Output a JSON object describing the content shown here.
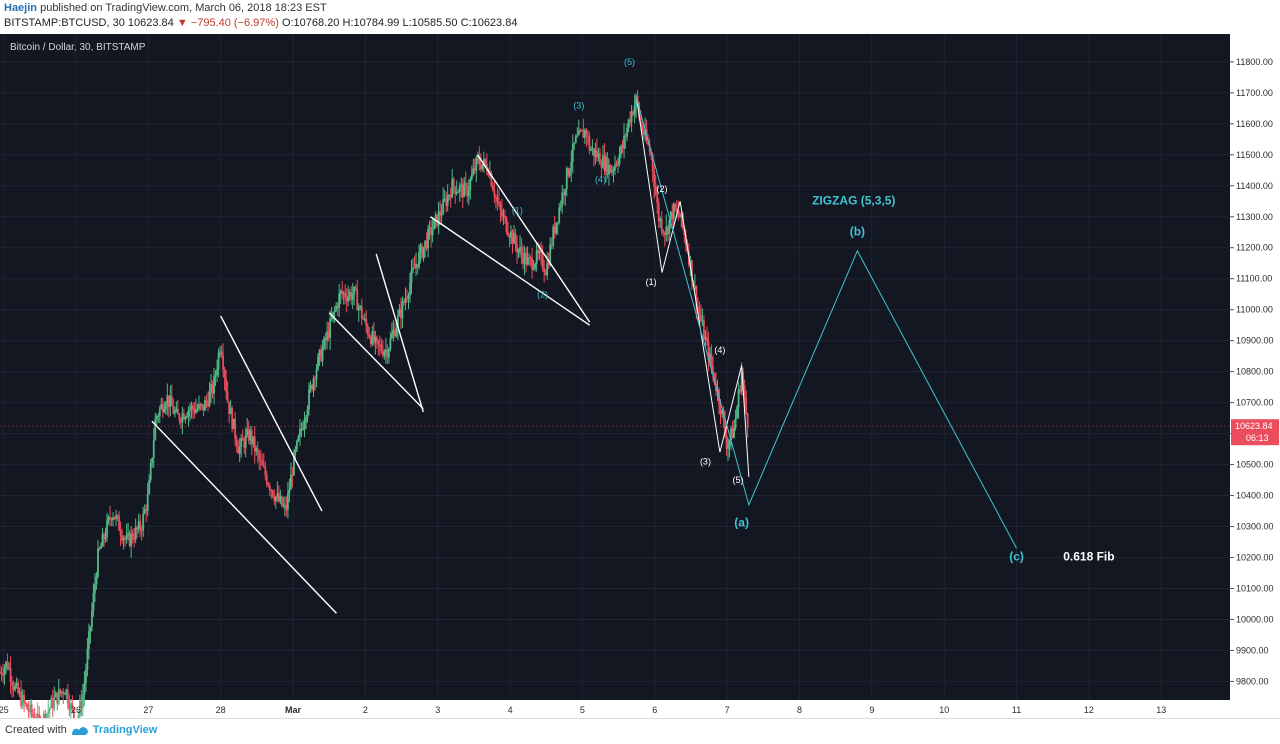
{
  "header": {
    "author": "Haejin",
    "published_text": "published on TradingView.com, March 06, 2018 18:23 EST",
    "symbol": "BITSTAMP:BTCUSD, 30",
    "last": "10623.84",
    "change": "−795.40 (−6.97%)",
    "open": "O:10768.20",
    "high": "H:10784.99",
    "low": "L:10585.50",
    "close": "C:10623.84",
    "chart_title": "Bitcoin / Dollar, 30, BITSTAMP"
  },
  "footer": {
    "created_with": "Created with",
    "brand": "TradingView"
  },
  "colors": {
    "background": "#131722",
    "up": "#53b987",
    "down": "#eb4d5c",
    "cyan": "#40c4d2",
    "white": "#ffffff",
    "price_badge": "#eb4d5c"
  },
  "chart_data": {
    "type": "candlestick",
    "title": "Bitcoin / Dollar, 30, BITSTAMP",
    "x_ticks": [
      "25",
      "26",
      "27",
      "28",
      "Mar",
      "2",
      "3",
      "4",
      "5",
      "6",
      "7",
      "8",
      "9",
      "10",
      "11",
      "12",
      "13"
    ],
    "x_tick_days": [
      0,
      1,
      2,
      3,
      4,
      5,
      6,
      7,
      8,
      9,
      10,
      11,
      12,
      13,
      14,
      15,
      16
    ],
    "y_ticks": [
      9800,
      9900,
      10000,
      10100,
      10200,
      10300,
      10400,
      10500,
      10600,
      10700,
      10800,
      10900,
      11000,
      11100,
      11200,
      11300,
      11400,
      11500,
      11600,
      11700,
      11800
    ],
    "y_tick_labels": [
      "9800.00",
      "9900.00",
      "10000.00",
      "10100.00",
      "10200.00",
      "10300.00",
      "10400.00",
      "10500.00",
      "10600.00",
      "10700.00",
      "10800.00",
      "10900.00",
      "11000.00",
      "11100.00",
      "11200.00",
      "11300.00",
      "11400.00",
      "11500.00",
      "11600.00",
      "11700.00",
      "11800.00"
    ],
    "ylim": [
      9740,
      11890
    ],
    "xlim_days": [
      -0.05,
      16.95
    ],
    "last_price": {
      "value": 10623.84,
      "label": "10623.84",
      "countdown": "06:13"
    },
    "price_path": [
      [
        -0.05,
        9830
      ],
      [
        0.05,
        9860
      ],
      [
        0.15,
        9780
      ],
      [
        0.3,
        9720
      ],
      [
        0.5,
        9660
      ],
      [
        0.7,
        9740
      ],
      [
        0.85,
        9780
      ],
      [
        1.0,
        9660
      ],
      [
        1.1,
        9760
      ],
      [
        1.3,
        10200
      ],
      [
        1.5,
        10350
      ],
      [
        1.7,
        10250
      ],
      [
        1.9,
        10300
      ],
      [
        2.0,
        10400
      ],
      [
        2.1,
        10650
      ],
      [
        2.25,
        10720
      ],
      [
        2.4,
        10650
      ],
      [
        2.55,
        10680
      ],
      [
        2.75,
        10680
      ],
      [
        2.9,
        10750
      ],
      [
        3.0,
        10900
      ],
      [
        3.1,
        10700
      ],
      [
        3.25,
        10550
      ],
      [
        3.4,
        10600
      ],
      [
        3.55,
        10500
      ],
      [
        3.75,
        10400
      ],
      [
        3.9,
        10350
      ],
      [
        4.0,
        10500
      ],
      [
        4.15,
        10650
      ],
      [
        4.3,
        10800
      ],
      [
        4.45,
        10900
      ],
      [
        4.65,
        11050
      ],
      [
        4.85,
        11050
      ],
      [
        5.0,
        10950
      ],
      [
        5.15,
        10880
      ],
      [
        5.3,
        10870
      ],
      [
        5.5,
        11000
      ],
      [
        5.7,
        11150
      ],
      [
        5.9,
        11250
      ],
      [
        6.05,
        11320
      ],
      [
        6.2,
        11400
      ],
      [
        6.4,
        11380
      ],
      [
        6.55,
        11480
      ],
      [
        6.7,
        11460
      ],
      [
        6.85,
        11320
      ],
      [
        7.0,
        11250
      ],
      [
        7.1,
        11200
      ],
      [
        7.25,
        11150
      ],
      [
        7.4,
        11170
      ],
      [
        7.5,
        11130
      ],
      [
        7.6,
        11250
      ],
      [
        7.75,
        11400
      ],
      [
        7.9,
        11540
      ],
      [
        8.05,
        11580
      ],
      [
        8.1,
        11520
      ],
      [
        8.2,
        11500
      ],
      [
        8.4,
        11450
      ],
      [
        8.55,
        11520
      ],
      [
        8.65,
        11620
      ],
      [
        8.75,
        11680
      ],
      [
        8.8,
        11600
      ],
      [
        8.95,
        11500
      ],
      [
        9.05,
        11300
      ],
      [
        9.15,
        11250
      ],
      [
        9.25,
        11320
      ],
      [
        9.35,
        11300
      ],
      [
        9.45,
        11200
      ],
      [
        9.6,
        11000
      ],
      [
        9.75,
        10850
      ],
      [
        9.9,
        10700
      ],
      [
        10.0,
        10560
      ],
      [
        10.1,
        10620
      ],
      [
        10.2,
        10800
      ],
      [
        10.25,
        10680
      ],
      [
        10.3,
        10623
      ]
    ],
    "trendlines": [
      {
        "from": [
          2.05,
          10640
        ],
        "to": [
          4.6,
          10020
        ]
      },
      {
        "from": [
          3.0,
          10980
        ],
        "to": [
          4.4,
          10350
        ]
      },
      {
        "from": [
          4.5,
          10990
        ],
        "to": [
          5.8,
          10680
        ]
      },
      {
        "from": [
          5.15,
          11180
        ],
        "to": [
          5.8,
          10670
        ]
      },
      {
        "from": [
          5.9,
          11300
        ],
        "to": [
          8.1,
          10950
        ]
      },
      {
        "from": [
          6.55,
          11500
        ],
        "to": [
          8.1,
          10960
        ]
      }
    ],
    "wave_paths": [
      {
        "color": "white",
        "points": [
          [
            8.75,
            11680
          ],
          [
            9.1,
            11120
          ],
          [
            9.35,
            11350
          ],
          [
            9.9,
            10540
          ],
          [
            10.2,
            10820
          ],
          [
            10.3,
            10460
          ]
        ]
      },
      {
        "color": "cyan",
        "points": [
          [
            8.75,
            11680
          ],
          [
            10.3,
            10370
          ],
          [
            11.8,
            11190
          ],
          [
            14.0,
            10230
          ]
        ]
      }
    ],
    "annotations": [
      {
        "text": "(1)",
        "x": 7.1,
        "y": 11310,
        "color": "cyan"
      },
      {
        "text": "(2)",
        "x": 7.45,
        "y": 11040,
        "color": "cyan"
      },
      {
        "text": "(3)",
        "x": 7.95,
        "y": 11650,
        "color": "cyan"
      },
      {
        "text": "(4)",
        "x": 8.25,
        "y": 11410,
        "color": "cyan"
      },
      {
        "text": "(5)",
        "x": 8.65,
        "y": 11790,
        "color": "cyan"
      },
      {
        "text": "(1)",
        "x": 8.95,
        "y": 11080,
        "color": "white"
      },
      {
        "text": "(2)",
        "x": 9.1,
        "y": 11380,
        "color": "white"
      },
      {
        "text": "(3)",
        "x": 9.7,
        "y": 10500,
        "color": "white"
      },
      {
        "text": "(4)",
        "x": 9.9,
        "y": 10860,
        "color": "white"
      },
      {
        "text": "(5)",
        "x": 10.15,
        "y": 10440,
        "color": "white"
      },
      {
        "text": "(a)",
        "x": 10.2,
        "y": 10300,
        "color": "cyan",
        "bold": true
      },
      {
        "text": "(b)",
        "x": 11.8,
        "y": 11240,
        "color": "cyan",
        "bold": true
      },
      {
        "text": "(c)",
        "x": 14.0,
        "y": 10190,
        "color": "cyan",
        "bold": true
      },
      {
        "text": "ZIGZAG (5,3,5)",
        "x": 11.75,
        "y": 11340,
        "color": "cyan",
        "bold": true,
        "big": true
      },
      {
        "text": "0.618 Fib",
        "x": 15.0,
        "y": 10190,
        "color": "white",
        "bold": true,
        "big": true
      }
    ]
  }
}
